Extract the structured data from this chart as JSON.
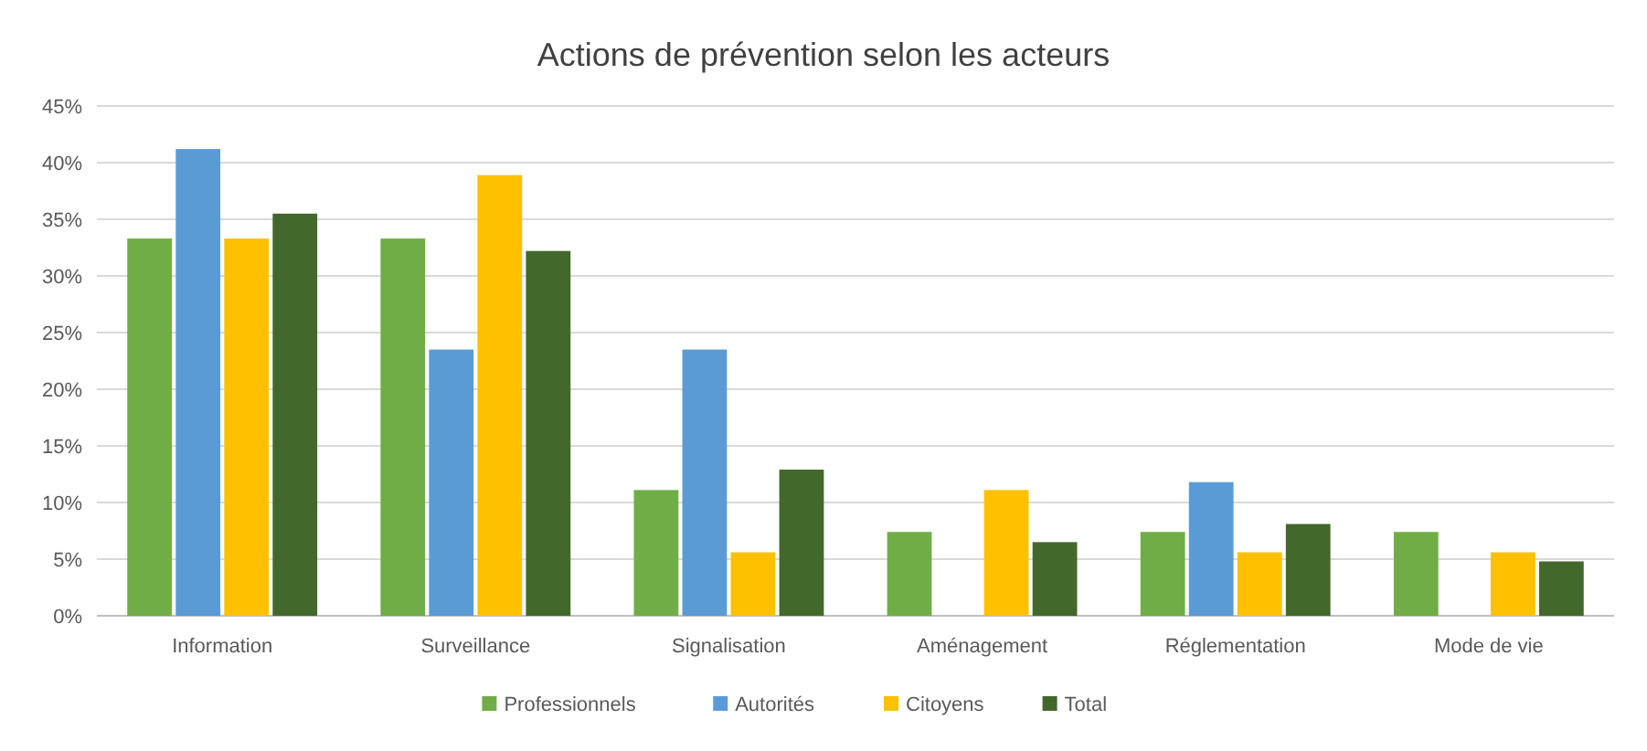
{
  "chart_data": {
    "type": "bar",
    "title": "Actions de prévention selon les acteurs",
    "categories": [
      "Information",
      "Surveillance",
      "Signalisation",
      "Aménagement",
      "Réglementation",
      "Mode de vie"
    ],
    "series": [
      {
        "name": "Professionnels",
        "color": "#70ad47",
        "values": [
          33.3,
          33.3,
          11.1,
          7.4,
          7.4,
          7.4
        ]
      },
      {
        "name": "Autorités",
        "color": "#5b9bd5",
        "values": [
          41.2,
          23.5,
          23.5,
          0,
          11.8,
          0
        ]
      },
      {
        "name": "Citoyens",
        "color": "#ffc000",
        "values": [
          33.3,
          38.9,
          5.6,
          11.1,
          5.6,
          5.6
        ]
      },
      {
        "name": "Total",
        "color": "#43682b",
        "values": [
          35.5,
          32.2,
          12.9,
          6.5,
          8.1,
          4.8
        ]
      }
    ],
    "ylim": [
      0,
      45
    ],
    "yticks": [
      {
        "value": 0,
        "label": "0%"
      },
      {
        "value": 5,
        "label": "5%"
      },
      {
        "value": 10,
        "label": "10%"
      },
      {
        "value": 15,
        "label": "15%"
      },
      {
        "value": 20,
        "label": "20%"
      },
      {
        "value": 25,
        "label": "25%"
      },
      {
        "value": 30,
        "label": "30%"
      },
      {
        "value": 35,
        "label": "35%"
      },
      {
        "value": 40,
        "label": "40%"
      },
      {
        "value": 45,
        "label": "45%"
      }
    ],
    "grid": "y",
    "legend": "bottom"
  }
}
